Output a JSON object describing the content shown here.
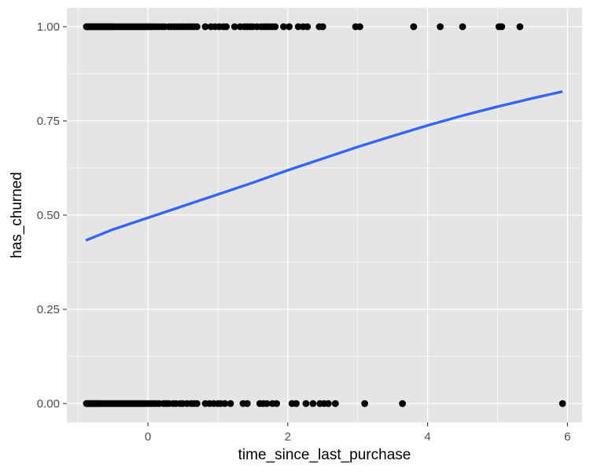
{
  "chart_data": {
    "type": "scatter",
    "title": "",
    "xlabel": "time_since_last_purchase",
    "ylabel": "has_churned",
    "xlim": [
      -1.16,
      6.21
    ],
    "ylim": [
      -0.05,
      1.05
    ],
    "x_ticks": [
      {
        "value": 0,
        "label": "0"
      },
      {
        "value": 2,
        "label": "2"
      },
      {
        "value": 4,
        "label": "4"
      },
      {
        "value": 6,
        "label": "6"
      }
    ],
    "y_ticks": [
      {
        "value": 0.0,
        "label": "0.00"
      },
      {
        "value": 0.25,
        "label": "0.25"
      },
      {
        "value": 0.5,
        "label": "0.50"
      },
      {
        "value": 0.75,
        "label": "0.75"
      },
      {
        "value": 1.0,
        "label": "1.00"
      }
    ],
    "grid": true,
    "colors": {
      "panel_background": "#e5e5e5",
      "grid": "#ffffff",
      "points": "#000000",
      "trend_line": "#3366ff"
    },
    "series": [
      {
        "y": 1,
        "x": [
          -0.88,
          -0.86,
          -0.84,
          -0.82,
          -0.8,
          -0.78,
          -0.76,
          -0.74,
          -0.72,
          -0.7,
          -0.68,
          -0.66,
          -0.64,
          -0.62,
          -0.6,
          -0.58,
          -0.56,
          -0.54,
          -0.52,
          -0.5,
          -0.47,
          -0.44,
          -0.41,
          -0.38,
          -0.35,
          -0.32,
          -0.29,
          -0.26,
          -0.23,
          -0.2,
          -0.17,
          -0.14,
          -0.11,
          -0.08,
          -0.05,
          -0.02,
          0.01,
          0.04,
          0.08,
          0.12,
          0.16,
          0.2,
          0.24,
          0.3,
          0.34,
          0.38,
          0.42,
          0.46,
          0.5,
          0.54,
          0.58,
          0.62,
          0.66,
          0.7,
          0.82,
          0.9,
          0.96,
          1.02,
          1.08,
          1.12,
          1.24,
          1.32,
          1.38,
          1.42,
          1.46,
          1.5,
          1.56,
          1.62,
          1.66,
          1.7,
          1.74,
          1.78,
          1.82,
          1.94,
          2.02,
          2.15,
          2.22,
          2.28,
          2.45,
          2.5,
          2.97,
          3.03,
          3.8,
          4.18,
          4.5,
          5.02,
          5.06,
          5.32
        ]
      },
      {
        "y": 0,
        "x": [
          -0.88,
          -0.86,
          -0.84,
          -0.82,
          -0.8,
          -0.78,
          -0.76,
          -0.74,
          -0.72,
          -0.7,
          -0.67,
          -0.64,
          -0.61,
          -0.58,
          -0.55,
          -0.52,
          -0.49,
          -0.46,
          -0.43,
          -0.4,
          -0.37,
          -0.34,
          -0.31,
          -0.28,
          -0.25,
          -0.22,
          -0.19,
          -0.16,
          -0.13,
          -0.1,
          -0.07,
          -0.04,
          0.0,
          0.04,
          0.08,
          0.12,
          0.16,
          0.22,
          0.26,
          0.3,
          0.36,
          0.4,
          0.46,
          0.5,
          0.56,
          0.62,
          0.66,
          0.7,
          0.82,
          0.88,
          0.94,
          1.0,
          1.04,
          1.1,
          1.18,
          1.36,
          1.42,
          1.6,
          1.65,
          1.7,
          1.78,
          1.84,
          2.06,
          2.12,
          2.26,
          2.36,
          2.46,
          2.52,
          2.58,
          2.68,
          3.1,
          3.64,
          5.93
        ]
      }
    ],
    "trend_line": {
      "x": [
        -0.89,
        -0.5,
        0,
        0.5,
        1,
        1.5,
        2,
        2.5,
        3,
        3.5,
        4,
        4.5,
        5,
        5.5,
        5.93
      ],
      "y": [
        0.433,
        0.462,
        0.493,
        0.524,
        0.555,
        0.586,
        0.619,
        0.65,
        0.681,
        0.71,
        0.738,
        0.764,
        0.788,
        0.81,
        0.828
      ]
    }
  }
}
